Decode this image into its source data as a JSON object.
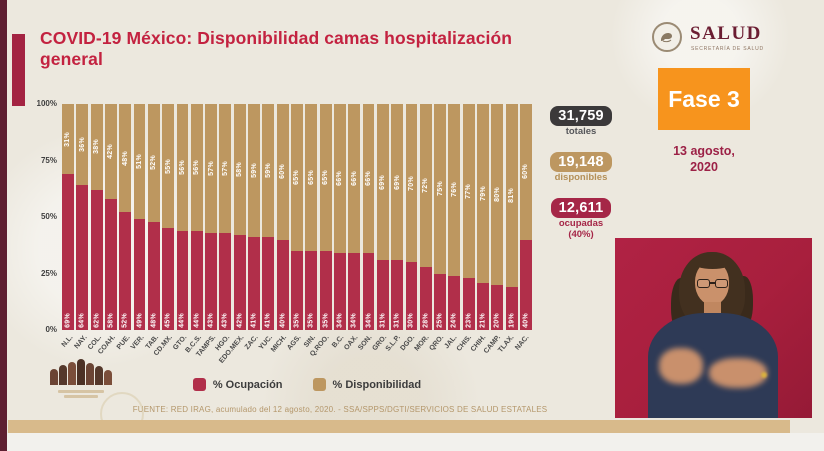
{
  "slide": {
    "title": "COVID-19 México: Disponibilidad camas hospitalización general",
    "phase": "Fase 3",
    "date_line1": "13 agosto,",
    "date_line2": "2020"
  },
  "brand": {
    "name": "SALUD",
    "tagline": "SECRETARÍA DE SALUD"
  },
  "stats": {
    "totales": {
      "value": "31,759",
      "label": "totales"
    },
    "disponibles": {
      "value": "19,148",
      "label": "disponibles"
    },
    "ocupadas": {
      "value": "12,611",
      "label": "ocupadas",
      "sublabel": "(40%)"
    }
  },
  "footer": {
    "source": "FUENTE: RED IRAG, acumulado del 12 agosto, 2020.  -  SSA/SPPS/DGTI/SERVICIOS DE SALUD ESTATALES"
  },
  "colors": {
    "occupied": "#b12f4a",
    "available": "#bd9760",
    "title_red": "#c32240",
    "phase_orange": "#f7941d",
    "dark_box": "#3b393a",
    "ocupadas_box": "#a52647",
    "maroon": "#6b1d32",
    "interpreter_bg": "#a81f3d",
    "bottom_bar_tan": "#d8ba8b"
  },
  "chart_data": {
    "type": "bar",
    "stacked": true,
    "title": "COVID-19 México: Disponibilidad camas hospitalización general",
    "categories": [
      "N.L.",
      "NAY.",
      "COL.",
      "COAH.",
      "PUE.",
      "VER.",
      "TAB.",
      "CD.MX.",
      "GTO.",
      "B.C.S.",
      "TAMPS.",
      "HGO.",
      "EDO.MEX.",
      "ZAC.",
      "YUC.",
      "MICH.",
      "AGS.",
      "SIN.",
      "Q.ROO.",
      "B.C.",
      "OAX.",
      "SON.",
      "GRO.",
      "S.L.P.",
      "DGO.",
      "MOR.",
      "QRO.",
      "JAL.",
      "CHIS.",
      "CHIH.",
      "CAMP.",
      "TLAX.",
      "NAC."
    ],
    "series": [
      {
        "name": "% Ocupación",
        "color": "#b12f4a",
        "values": [
          69,
          64,
          62,
          58,
          52,
          49,
          48,
          45,
          44,
          44,
          43,
          43,
          42,
          41,
          41,
          40,
          35,
          35,
          35,
          34,
          34,
          34,
          31,
          31,
          30,
          28,
          25,
          24,
          23,
          21,
          20,
          19,
          40
        ]
      },
      {
        "name": "% Disponibilidad",
        "color": "#bd9760",
        "values": [
          31,
          36,
          38,
          42,
          48,
          51,
          52,
          55,
          56,
          56,
          57,
          57,
          58,
          59,
          59,
          60,
          65,
          65,
          65,
          66,
          66,
          66,
          69,
          69,
          70,
          72,
          75,
          76,
          77,
          79,
          80,
          81,
          60
        ]
      }
    ],
    "y_ticks": [
      "100%",
      "75%",
      "50%",
      "25%",
      "0%"
    ],
    "ylim": [
      0,
      100
    ],
    "ylabel": "",
    "xlabel": "",
    "legend_position": "bottom",
    "grid": false,
    "value_labels": "percent shown inside each segment"
  }
}
